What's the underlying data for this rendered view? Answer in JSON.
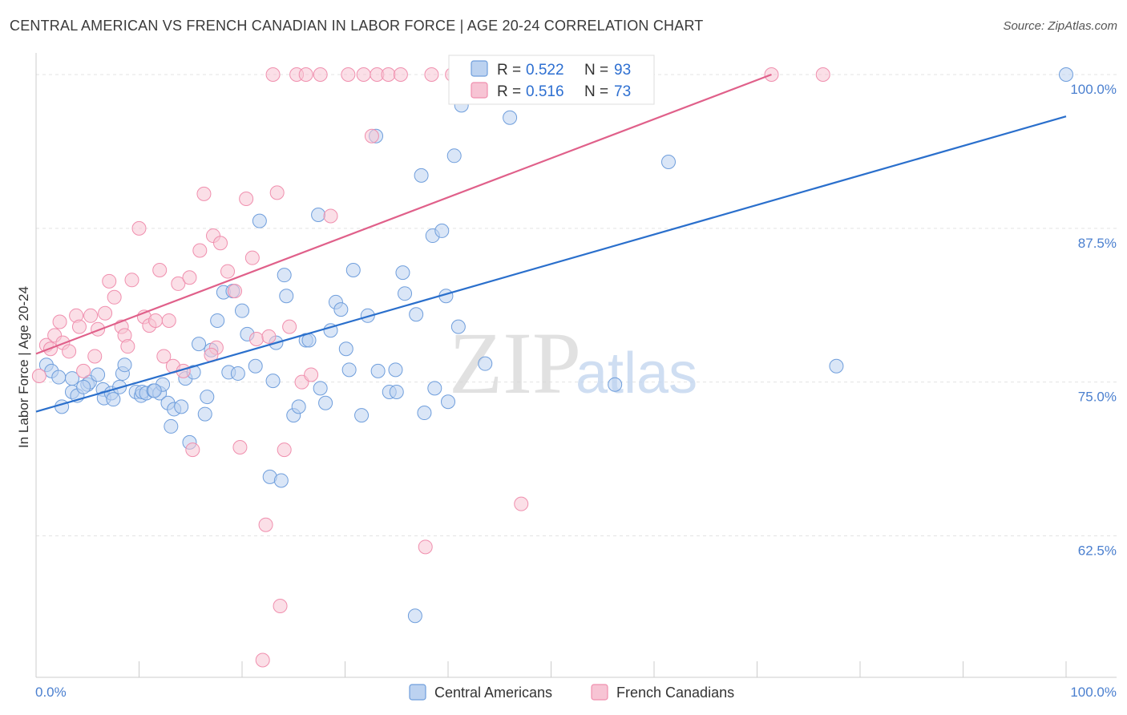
{
  "title": "CENTRAL AMERICAN VS FRENCH CANADIAN IN LABOR FORCE | AGE 20-24 CORRELATION CHART",
  "source": "Source: ZipAtlas.com",
  "watermark": {
    "zip": "ZIP",
    "atlas": "atlas"
  },
  "legend": {
    "r_label": "R =",
    "n_label": "N =",
    "series": [
      {
        "name": "Central Americans",
        "r": "0.522",
        "n": "93",
        "color": "#6f9edc",
        "fill": "#bcd2f0",
        "line": "#2a6fcc"
      },
      {
        "name": "French Canadians",
        "r": "0.516",
        "n": "73",
        "color": "#f08fae",
        "fill": "#f7c4d4",
        "line": "#e0608a"
      }
    ]
  },
  "chart_data": {
    "type": "scatter",
    "title": "CENTRAL AMERICAN VS FRENCH CANADIAN IN LABOR FORCE | AGE 20-24 CORRELATION CHART",
    "xlabel": "",
    "ylabel": "In Labor Force | Age 20-24",
    "xlim": [
      0,
      100
    ],
    "ylim": [
      51,
      101.5
    ],
    "x_tick_labels": [
      "0.0%",
      "100.0%"
    ],
    "y_ticks": [
      62.5,
      75.0,
      87.5,
      100.0
    ],
    "y_tick_labels": [
      "62.5%",
      "75.0%",
      "87.5%",
      "100.0%"
    ],
    "grid": true,
    "legend_position": "top-center",
    "series": [
      {
        "name": "Central Americans",
        "trend": {
          "x": [
            0,
            100
          ],
          "y": [
            72.6,
            96.6
          ]
        },
        "points": [
          [
            1.0,
            76.4
          ],
          [
            1.5,
            75.9
          ],
          [
            2.2,
            75.4
          ],
          [
            2.5,
            73.0
          ],
          [
            3.5,
            75.3
          ],
          [
            3.5,
            74.2
          ],
          [
            4.0,
            73.9
          ],
          [
            5.0,
            74.8
          ],
          [
            5.2,
            75.0
          ],
          [
            6.5,
            74.4
          ],
          [
            6.0,
            75.6
          ],
          [
            6.6,
            73.7
          ],
          [
            7.3,
            74.1
          ],
          [
            7.5,
            73.6
          ],
          [
            8.1,
            74.6
          ],
          [
            8.4,
            75.7
          ],
          [
            8.6,
            76.4
          ],
          [
            9.7,
            74.2
          ],
          [
            10.2,
            73.9
          ],
          [
            10.3,
            74.2
          ],
          [
            10.7,
            74.1
          ],
          [
            11.4,
            74.3
          ],
          [
            12.0,
            74.1
          ],
          [
            12.3,
            74.8
          ],
          [
            12.8,
            73.3
          ],
          [
            13.1,
            71.4
          ],
          [
            13.4,
            72.8
          ],
          [
            14.1,
            73.0
          ],
          [
            14.5,
            75.3
          ],
          [
            14.9,
            70.1
          ],
          [
            15.3,
            75.8
          ],
          [
            15.8,
            78.1
          ],
          [
            16.4,
            72.4
          ],
          [
            16.6,
            73.8
          ],
          [
            17.0,
            77.6
          ],
          [
            17.6,
            80.0
          ],
          [
            18.2,
            82.3
          ],
          [
            19.1,
            82.4
          ],
          [
            18.7,
            75.8
          ],
          [
            19.6,
            75.7
          ],
          [
            20.0,
            80.8
          ],
          [
            20.5,
            78.9
          ],
          [
            21.3,
            76.3
          ],
          [
            21.7,
            88.1
          ],
          [
            22.7,
            67.3
          ],
          [
            23.0,
            75.1
          ],
          [
            23.3,
            78.2
          ],
          [
            23.8,
            67.0
          ],
          [
            24.1,
            83.7
          ],
          [
            24.3,
            82.0
          ],
          [
            25.0,
            72.3
          ],
          [
            25.5,
            73.0
          ],
          [
            26.2,
            78.4
          ],
          [
            26.5,
            78.4
          ],
          [
            27.4,
            88.6
          ],
          [
            27.6,
            74.5
          ],
          [
            28.1,
            73.3
          ],
          [
            28.6,
            79.2
          ],
          [
            29.1,
            81.5
          ],
          [
            29.6,
            80.9
          ],
          [
            30.1,
            77.7
          ],
          [
            30.4,
            76.0
          ],
          [
            30.8,
            84.1
          ],
          [
            31.6,
            72.3
          ],
          [
            32.2,
            80.4
          ],
          [
            33.0,
            95.0
          ],
          [
            33.2,
            75.9
          ],
          [
            34.3,
            74.2
          ],
          [
            34.9,
            76.0
          ],
          [
            35.6,
            83.9
          ],
          [
            35.0,
            74.2
          ],
          [
            35.8,
            82.2
          ],
          [
            36.9,
            80.5
          ],
          [
            37.4,
            91.8
          ],
          [
            37.7,
            72.5
          ],
          [
            38.5,
            86.9
          ],
          [
            38.7,
            74.5
          ],
          [
            39.4,
            87.3
          ],
          [
            39.8,
            82.0
          ],
          [
            40.0,
            73.4
          ],
          [
            40.6,
            93.4
          ],
          [
            41.0,
            79.5
          ],
          [
            41.3,
            97.5
          ],
          [
            42.2,
            100.0
          ],
          [
            43.6,
            76.5
          ],
          [
            46.0,
            96.5
          ],
          [
            56.2,
            74.8
          ],
          [
            61.4,
            92.9
          ],
          [
            77.7,
            76.3
          ],
          [
            100.0,
            100.0
          ],
          [
            36.8,
            56.0
          ],
          [
            11.5,
            74.3
          ],
          [
            4.6,
            74.6
          ]
        ]
      },
      {
        "name": "French Canadians",
        "trend": {
          "x": [
            0,
            71.4
          ],
          "y": [
            77.3,
            100.0
          ]
        },
        "points": [
          [
            0.3,
            75.5
          ],
          [
            1.0,
            78.0
          ],
          [
            1.4,
            77.7
          ],
          [
            1.8,
            78.8
          ],
          [
            2.3,
            79.9
          ],
          [
            2.6,
            78.2
          ],
          [
            3.2,
            77.5
          ],
          [
            3.9,
            80.4
          ],
          [
            4.2,
            79.5
          ],
          [
            4.6,
            75.9
          ],
          [
            5.3,
            80.4
          ],
          [
            5.7,
            77.1
          ],
          [
            6.0,
            79.3
          ],
          [
            6.7,
            80.6
          ],
          [
            7.1,
            83.2
          ],
          [
            7.6,
            81.9
          ],
          [
            8.3,
            79.5
          ],
          [
            8.6,
            78.8
          ],
          [
            8.9,
            77.9
          ],
          [
            9.3,
            83.3
          ],
          [
            10.0,
            87.5
          ],
          [
            10.5,
            80.3
          ],
          [
            11.0,
            79.6
          ],
          [
            11.6,
            80.0
          ],
          [
            12.0,
            84.1
          ],
          [
            12.4,
            77.1
          ],
          [
            12.9,
            80.0
          ],
          [
            13.3,
            76.3
          ],
          [
            13.8,
            83.0
          ],
          [
            14.3,
            75.9
          ],
          [
            14.9,
            83.5
          ],
          [
            15.2,
            69.5
          ],
          [
            15.9,
            85.7
          ],
          [
            16.3,
            90.3
          ],
          [
            17.2,
            86.9
          ],
          [
            17.5,
            77.8
          ],
          [
            17.9,
            86.3
          ],
          [
            18.6,
            84.0
          ],
          [
            19.3,
            82.4
          ],
          [
            19.8,
            69.7
          ],
          [
            20.4,
            89.9
          ],
          [
            21.0,
            85.1
          ],
          [
            21.4,
            78.5
          ],
          [
            22.0,
            52.4
          ],
          [
            22.3,
            63.4
          ],
          [
            23.0,
            100.0
          ],
          [
            23.4,
            90.4
          ],
          [
            23.7,
            56.8
          ],
          [
            24.1,
            69.5
          ],
          [
            24.6,
            79.5
          ],
          [
            25.3,
            100.0
          ],
          [
            25.8,
            75.0
          ],
          [
            26.2,
            100.0
          ],
          [
            26.7,
            75.6
          ],
          [
            27.6,
            100.0
          ],
          [
            28.6,
            88.5
          ],
          [
            30.3,
            100.0
          ],
          [
            31.8,
            100.0
          ],
          [
            32.6,
            95.0
          ],
          [
            33.1,
            100.0
          ],
          [
            34.2,
            100.0
          ],
          [
            35.4,
            100.0
          ],
          [
            37.8,
            61.6
          ],
          [
            38.4,
            100.0
          ],
          [
            40.4,
            100.0
          ],
          [
            41.6,
            100.0
          ],
          [
            42.7,
            100.0
          ],
          [
            47.1,
            65.1
          ],
          [
            53.8,
            100.0
          ],
          [
            71.4,
            100.0
          ],
          [
            76.4,
            100.0
          ],
          [
            22.6,
            78.7
          ],
          [
            17.0,
            77.2
          ]
        ]
      }
    ]
  }
}
